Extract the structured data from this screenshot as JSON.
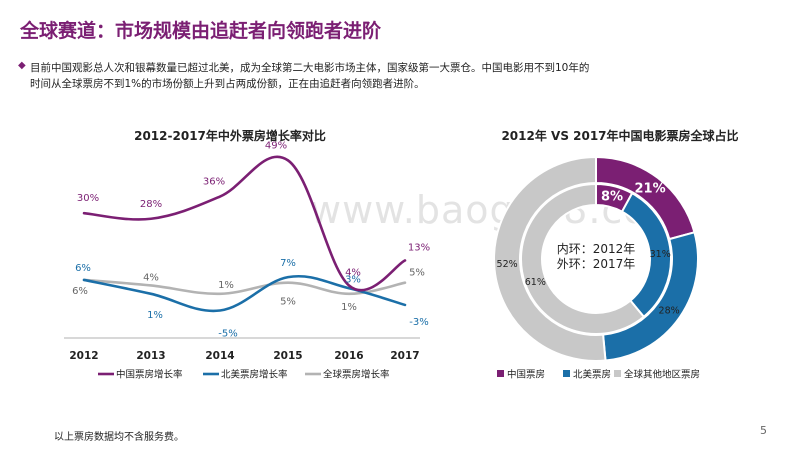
{
  "slide": {
    "title": "全球赛道：市场规模由追赶者向领跑者进阶",
    "bullet": "目前中国观影总人次和银幕数量已超过北美，成为全球第二大电影市场主体，国家级第一大票仓。中国电影用不到10年的时间从全球票房不到1%的市场份额上升到占两成份额，正在由追赶者向领跑者进阶。",
    "footnote": "以上票房数据均不含服务费。",
    "page_number": "5",
    "watermark": "www.baogao8.com"
  },
  "chart_data": [
    {
      "type": "line",
      "title": "2012-2017年中外票房增长率对比",
      "x": [
        "2012",
        "2013",
        "2014",
        "2015",
        "2016",
        "2017"
      ],
      "series": [
        {
          "name": "中国票房增长率",
          "color": "#7b1f73",
          "values": [
            30,
            28,
            36,
            49,
            4,
            13
          ],
          "labels": [
            "30%",
            "28%",
            "36%",
            "49%",
            "4%",
            "13%"
          ]
        },
        {
          "name": "北美票房增长率",
          "color": "#1b6fa8",
          "values": [
            6,
            1,
            -5,
            7,
            3,
            -3
          ],
          "labels": [
            "6%",
            "1%",
            "-5%",
            "7%",
            "3%",
            "-3%"
          ]
        },
        {
          "name": "全球票房增长率",
          "color": "#b3b3b3",
          "values": [
            6,
            4,
            1,
            5,
            1,
            5
          ],
          "labels": [
            "6%",
            "4%",
            "1%",
            "5%",
            "1%",
            "5%"
          ]
        }
      ],
      "legend": "bottom"
    },
    {
      "type": "pie",
      "title": "2012年 VS 2017年中国电影票房全球占比",
      "center_label": [
        "内环：2012年",
        "外环：2017年"
      ],
      "categories": [
        "中国票房",
        "北美票房",
        "全球其他地区票房"
      ],
      "colors": [
        "#7b1f73",
        "#1b6fa8",
        "#c8c8c8"
      ],
      "inner_ring": {
        "year": "2012",
        "values": [
          8,
          31,
          61
        ],
        "labels": [
          "8%",
          "31%",
          "61%"
        ]
      },
      "outer_ring": {
        "year": "2017",
        "values": [
          21,
          28,
          52
        ],
        "labels": [
          "21%",
          "28%",
          "52%"
        ]
      },
      "legend": "bottom"
    }
  ]
}
